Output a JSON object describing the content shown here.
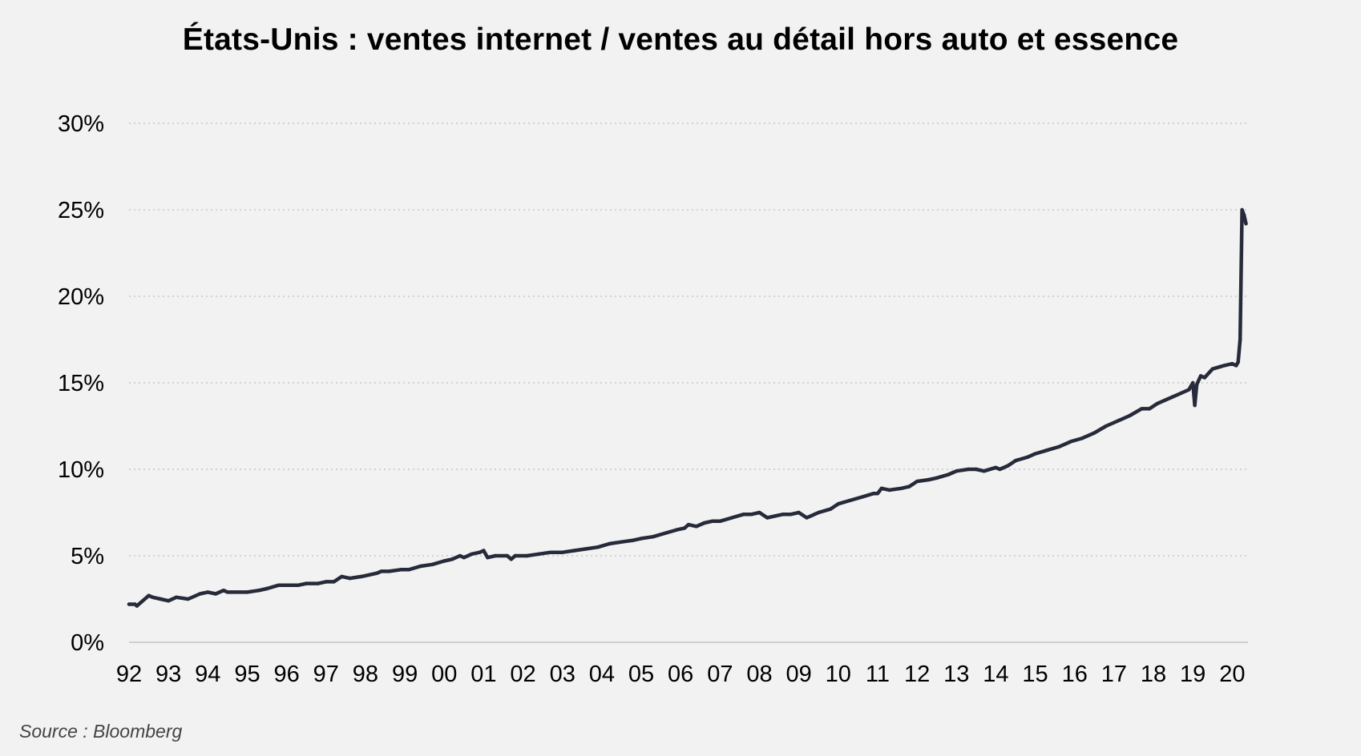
{
  "title": "États-Unis : ventes internet / ventes au détail hors auto et essence",
  "source": "Source : Bloomberg",
  "colors": {
    "background": "#f2f2f2",
    "line": "#262a3a",
    "grid": "#c8c8c8",
    "axis": "#cfcfcf"
  },
  "chart_data": {
    "type": "line",
    "title": "États-Unis : ventes internet / ventes au détail hors auto et essence",
    "xlabel": "",
    "ylabel": "",
    "xlim": [
      1992.0,
      2020.4
    ],
    "ylim": [
      0,
      30
    ],
    "grid": "horizontal dotted",
    "legend": "none",
    "x_ticks": [
      {
        "value": 1992,
        "label": "92"
      },
      {
        "value": 1993,
        "label": "93"
      },
      {
        "value": 1994,
        "label": "94"
      },
      {
        "value": 1995,
        "label": "95"
      },
      {
        "value": 1996,
        "label": "96"
      },
      {
        "value": 1997,
        "label": "97"
      },
      {
        "value": 1998,
        "label": "98"
      },
      {
        "value": 1999,
        "label": "99"
      },
      {
        "value": 2000,
        "label": "00"
      },
      {
        "value": 2001,
        "label": "01"
      },
      {
        "value": 2002,
        "label": "02"
      },
      {
        "value": 2003,
        "label": "03"
      },
      {
        "value": 2004,
        "label": "04"
      },
      {
        "value": 2005,
        "label": "05"
      },
      {
        "value": 2006,
        "label": "06"
      },
      {
        "value": 2007,
        "label": "07"
      },
      {
        "value": 2008,
        "label": "08"
      },
      {
        "value": 2009,
        "label": "09"
      },
      {
        "value": 2010,
        "label": "10"
      },
      {
        "value": 2011,
        "label": "11"
      },
      {
        "value": 2012,
        "label": "12"
      },
      {
        "value": 2013,
        "label": "13"
      },
      {
        "value": 2014,
        "label": "14"
      },
      {
        "value": 2015,
        "label": "15"
      },
      {
        "value": 2016,
        "label": "16"
      },
      {
        "value": 2017,
        "label": "17"
      },
      {
        "value": 2018,
        "label": "18"
      },
      {
        "value": 2019,
        "label": "19"
      },
      {
        "value": 2020,
        "label": "20"
      }
    ],
    "y_ticks": [
      {
        "value": 0,
        "label": "0%"
      },
      {
        "value": 5,
        "label": "5%"
      },
      {
        "value": 10,
        "label": "10%"
      },
      {
        "value": 15,
        "label": "15%"
      },
      {
        "value": 20,
        "label": "20%"
      },
      {
        "value": 25,
        "label": "25%"
      },
      {
        "value": 30,
        "label": "30%"
      }
    ],
    "series": [
      {
        "x": [
          1992.0,
          1992.15,
          1992.2,
          1992.3,
          1992.5,
          1992.6,
          1992.8,
          1993.0,
          1993.2,
          1993.5,
          1993.8,
          1994.0,
          1994.2,
          1994.4,
          1994.5,
          1994.6,
          1994.8,
          1995.0,
          1995.3,
          1995.5,
          1995.8,
          1996.0,
          1996.3,
          1996.5,
          1996.8,
          1997.0,
          1997.2,
          1997.4,
          1997.6,
          1997.9,
          1998.1,
          1998.3,
          1998.4,
          1998.6,
          1998.9,
          1999.1,
          1999.4,
          1999.7,
          2000.0,
          2000.2,
          2000.4,
          2000.5,
          2000.7,
          2000.9,
          2001.0,
          2001.1,
          2001.3,
          2001.6,
          2001.7,
          2001.8,
          2002.1,
          2002.4,
          2002.7,
          2003.0,
          2003.3,
          2003.6,
          2003.9,
          2004.2,
          2004.5,
          2004.8,
          2005.0,
          2005.3,
          2005.6,
          2005.9,
          2006.1,
          2006.2,
          2006.4,
          2006.6,
          2006.8,
          2007.0,
          2007.3,
          2007.6,
          2007.8,
          2008.0,
          2008.2,
          2008.4,
          2008.6,
          2008.8,
          2009.0,
          2009.2,
          2009.5,
          2009.8,
          2010.0,
          2010.3,
          2010.6,
          2010.9,
          2011.0,
          2011.1,
          2011.3,
          2011.6,
          2011.8,
          2012.0,
          2012.3,
          2012.5,
          2012.8,
          2013.0,
          2013.3,
          2013.5,
          2013.7,
          2014.0,
          2014.1,
          2014.3,
          2014.5,
          2014.8,
          2015.0,
          2015.3,
          2015.6,
          2015.9,
          2016.2,
          2016.5,
          2016.8,
          2017.1,
          2017.4,
          2017.7,
          2017.9,
          2018.1,
          2018.3,
          2018.5,
          2018.7,
          2018.9,
          2019.0,
          2019.05,
          2019.1,
          2019.2,
          2019.3,
          2019.5,
          2019.8,
          2020.0,
          2020.1,
          2020.15,
          2020.2,
          2020.25,
          2020.3,
          2020.35
        ],
        "values": [
          2.2,
          2.2,
          2.1,
          2.3,
          2.7,
          2.6,
          2.5,
          2.4,
          2.6,
          2.5,
          2.8,
          2.9,
          2.8,
          3.0,
          2.9,
          2.9,
          2.9,
          2.9,
          3.0,
          3.1,
          3.3,
          3.3,
          3.3,
          3.4,
          3.4,
          3.5,
          3.5,
          3.8,
          3.7,
          3.8,
          3.9,
          4.0,
          4.1,
          4.1,
          4.2,
          4.2,
          4.4,
          4.5,
          4.7,
          4.8,
          5.0,
          4.9,
          5.1,
          5.2,
          5.3,
          4.9,
          5.0,
          5.0,
          4.8,
          5.0,
          5.0,
          5.1,
          5.2,
          5.2,
          5.3,
          5.4,
          5.5,
          5.7,
          5.8,
          5.9,
          6.0,
          6.1,
          6.3,
          6.5,
          6.6,
          6.8,
          6.7,
          6.9,
          7.0,
          7.0,
          7.2,
          7.4,
          7.4,
          7.5,
          7.2,
          7.3,
          7.4,
          7.4,
          7.5,
          7.2,
          7.5,
          7.7,
          8.0,
          8.2,
          8.4,
          8.6,
          8.6,
          8.9,
          8.8,
          8.9,
          9.0,
          9.3,
          9.4,
          9.5,
          9.7,
          9.9,
          10.0,
          10.0,
          9.9,
          10.1,
          10.0,
          10.2,
          10.5,
          10.7,
          10.9,
          11.1,
          11.3,
          11.6,
          11.8,
          12.1,
          12.5,
          12.8,
          13.1,
          13.5,
          13.5,
          13.8,
          14.0,
          14.2,
          14.4,
          14.6,
          15.0,
          13.7,
          14.9,
          15.4,
          15.3,
          15.8,
          16.0,
          16.1,
          16.0,
          16.2,
          17.5,
          25.0,
          24.7,
          24.2
        ]
      }
    ]
  }
}
